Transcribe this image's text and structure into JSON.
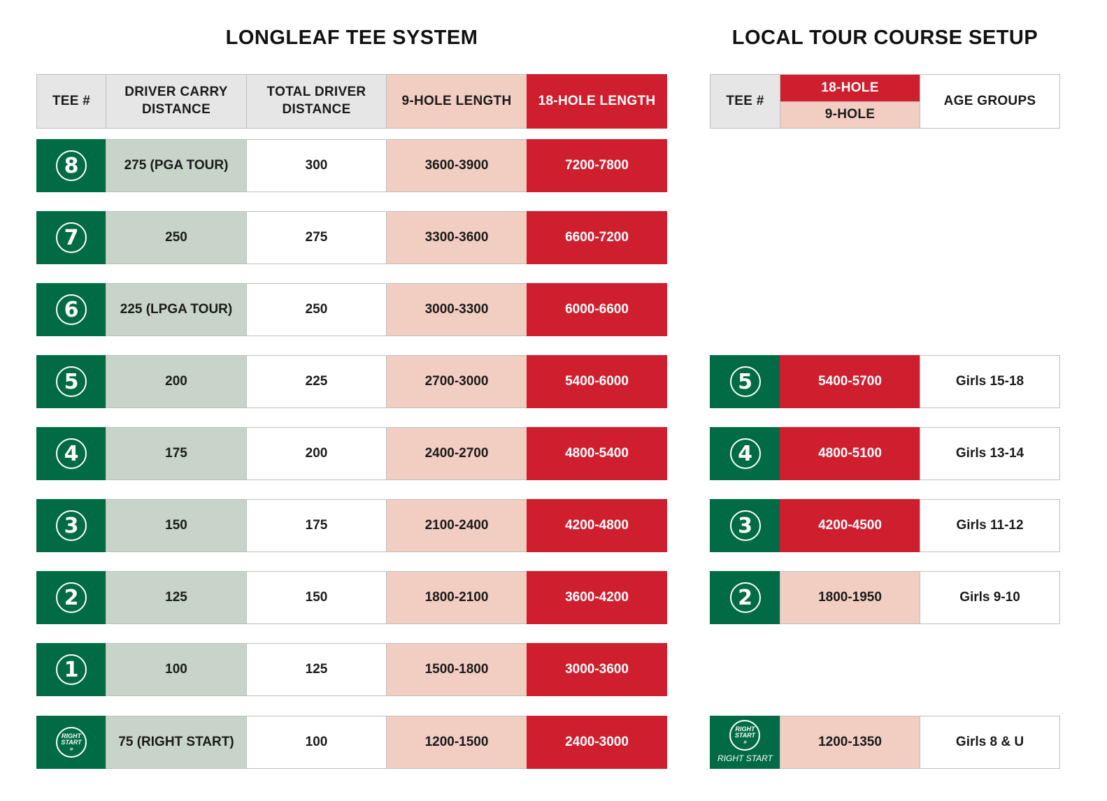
{
  "left": {
    "title": "LONGLEAF TEE SYSTEM",
    "headers": {
      "tee": "TEE #",
      "carry": "DRIVER CARRY\nDISTANCE",
      "total": "TOTAL DRIVER\nDISTANCE",
      "nine": "9-HOLE LENGTH",
      "eighteen": "18-HOLE LENGTH"
    },
    "rows": [
      {
        "tee": "8",
        "carry": "275 (PGA TOUR)",
        "total": "300",
        "nine": "3600-3900",
        "eighteen": "7200-7800"
      },
      {
        "tee": "7",
        "carry": "250",
        "total": "275",
        "nine": "3300-3600",
        "eighteen": "6600-7200"
      },
      {
        "tee": "6",
        "carry": "225 (LPGA TOUR)",
        "total": "250",
        "nine": "3000-3300",
        "eighteen": "6000-6600"
      },
      {
        "tee": "5",
        "carry": "200",
        "total": "225",
        "nine": "2700-3000",
        "eighteen": "5400-6000"
      },
      {
        "tee": "4",
        "carry": "175",
        "total": "200",
        "nine": "2400-2700",
        "eighteen": "4800-5400"
      },
      {
        "tee": "3",
        "carry": "150",
        "total": "175",
        "nine": "2100-2400",
        "eighteen": "4200-4800"
      },
      {
        "tee": "2",
        "carry": "125",
        "total": "150",
        "nine": "1800-2100",
        "eighteen": "3600-4200"
      },
      {
        "tee": "1",
        "carry": "100",
        "total": "125",
        "nine": "1500-1800",
        "eighteen": "3000-3600"
      },
      {
        "tee": "RIGHT START",
        "carry": "75 (RIGHT START)",
        "total": "100",
        "nine": "1200-1500",
        "eighteen": "2400-3000"
      }
    ]
  },
  "right": {
    "title": "LOCAL TOUR COURSE SETUP",
    "headers": {
      "tee": "TEE #",
      "eighteen": "18-HOLE",
      "nine": "9-HOLE",
      "age": "AGE GROUPS"
    },
    "rows": [
      {
        "tee": "5",
        "length": "5400-5700",
        "type": "18",
        "age": "Girls 15-18"
      },
      {
        "tee": "4",
        "length": "4800-5100",
        "type": "18",
        "age": "Girls 13-14"
      },
      {
        "tee": "3",
        "length": "4200-4500",
        "type": "18",
        "age": "Girls 11-12"
      },
      {
        "tee": "2",
        "length": "1800-1950",
        "type": "9",
        "age": "Girls 9-10"
      },
      {
        "tee": "RIGHT START",
        "length": "1200-1350",
        "type": "9",
        "age": "Girls 8 & U"
      }
    ],
    "right_start_caption": "RIGHT START"
  },
  "colors": {
    "green": "#006b45",
    "red": "#cf1f2f",
    "pink": "#f2cdc2",
    "sage": "#c8d3c9",
    "grey": "#e6e6e6"
  }
}
